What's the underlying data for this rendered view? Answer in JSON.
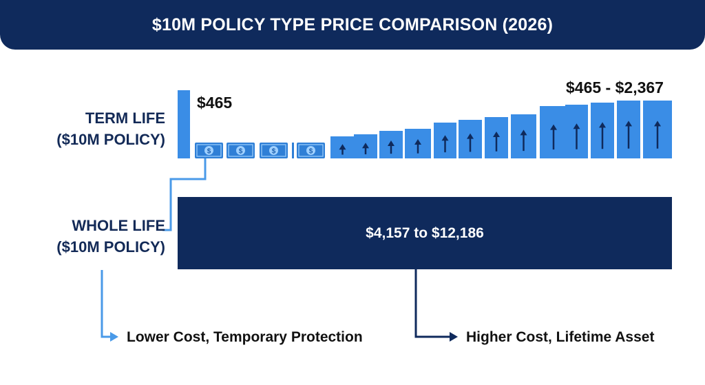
{
  "header": {
    "title": "$10M POLICY TYPE PRICE COMPARISON (2026)"
  },
  "colors": {
    "navy": "#0f2a5c",
    "term_blue": "#3a8de6",
    "connector_blue": "#4a9ae8",
    "money_blue": "#2f7fd6"
  },
  "chart_data": {
    "type": "bar",
    "title": "$10M POLICY TYPE PRICE COMPARISON (2026)",
    "rows": [
      {
        "label_lines": [
          "TERM LIFE",
          "($10M POLICY)"
        ],
        "start_value_label": "$465",
        "range_label": "$465 - $2,367",
        "min": 465,
        "max": 2367,
        "note": "Lower Cost, Temporary Protection",
        "icons": [
          "dollar-bill-icon",
          "up-arrow-icon"
        ]
      },
      {
        "label_lines": [
          "WHOLE LIFE",
          "($10M POLICY)"
        ],
        "range_label": "$4,157 to $12,186",
        "min": 4157,
        "max": 12186,
        "note": "Higher Cost, Lifetime Asset"
      }
    ]
  }
}
